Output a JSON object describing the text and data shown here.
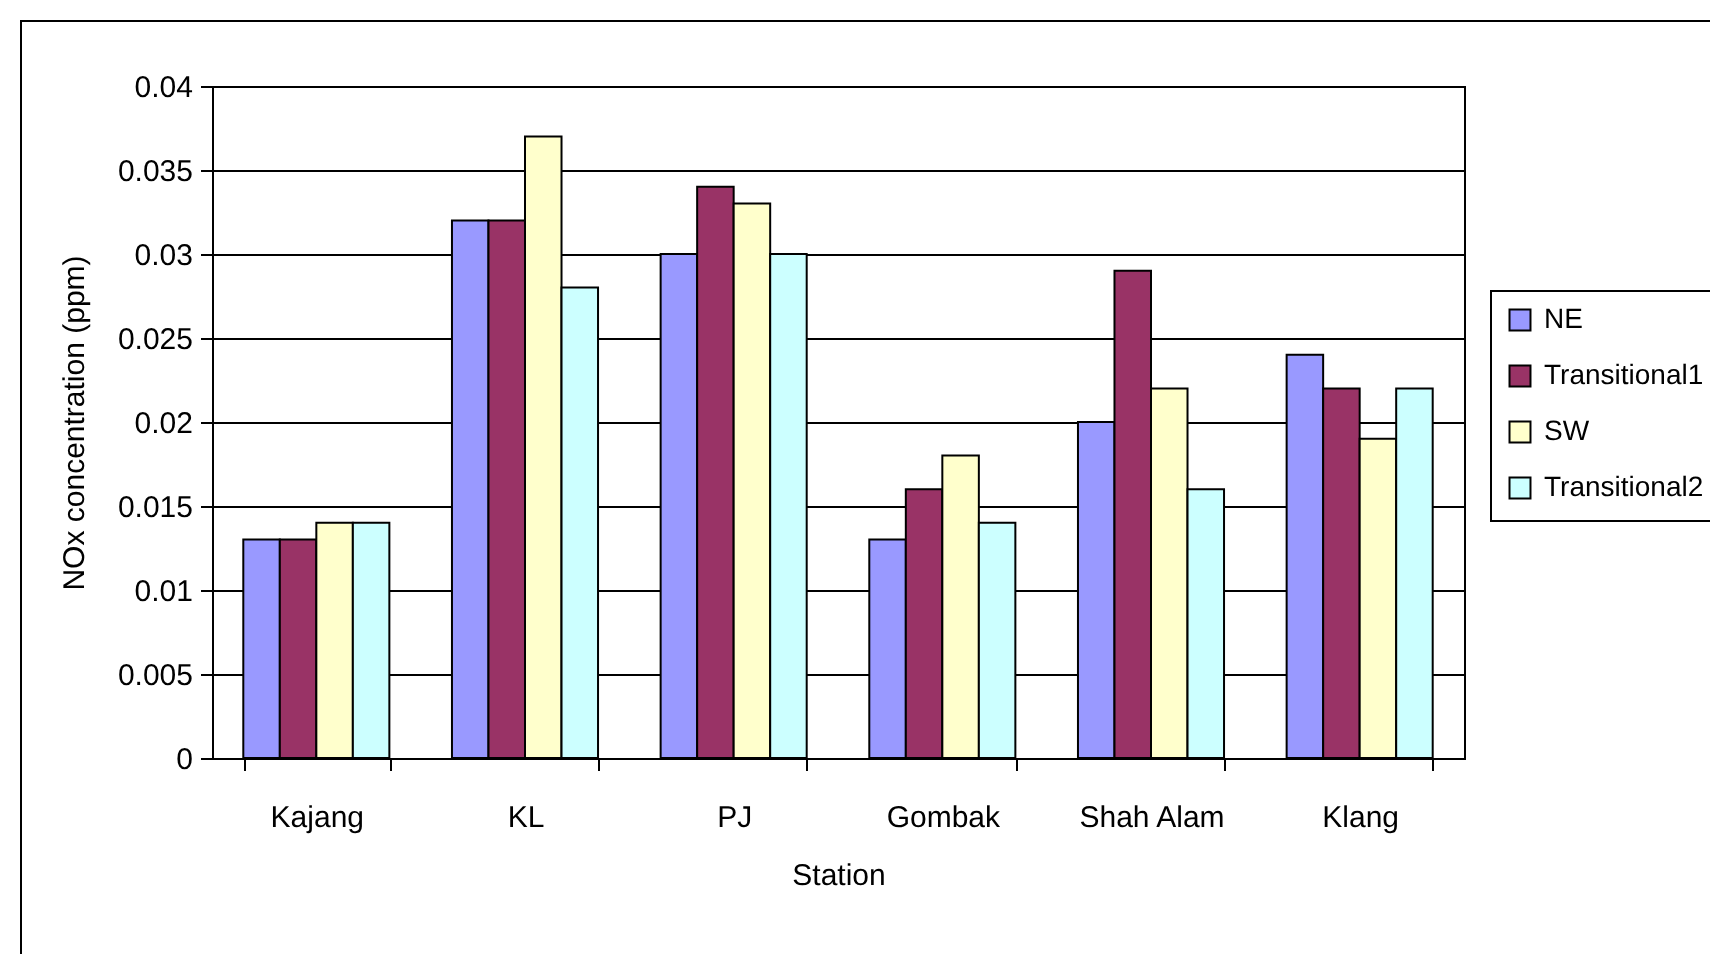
{
  "chart_data": {
    "type": "bar",
    "xlabel": "Station",
    "ylabel": "NOx concentration (ppm)",
    "categories": [
      "Kajang",
      "KL",
      "PJ",
      "Gombak",
      "Shah Alam",
      "Klang"
    ],
    "series": [
      {
        "name": "NE",
        "color": "#9999ff",
        "values": [
          0.013,
          0.032,
          0.03,
          0.013,
          0.02,
          0.024
        ]
      },
      {
        "name": "Transitional1",
        "color": "#993366",
        "values": [
          0.013,
          0.032,
          0.034,
          0.016,
          0.029,
          0.022
        ]
      },
      {
        "name": "SW",
        "color": "#ffffcc",
        "values": [
          0.014,
          0.037,
          0.033,
          0.018,
          0.022,
          0.019
        ]
      },
      {
        "name": "Transitional2",
        "color": "#ccffff",
        "values": [
          0.014,
          0.028,
          0.03,
          0.014,
          0.016,
          0.022
        ]
      }
    ],
    "ylim": [
      0,
      0.04
    ],
    "yticks": [
      0,
      0.005,
      0.01,
      0.015,
      0.02,
      0.025,
      0.03,
      0.035,
      0.04
    ],
    "grid": "y",
    "legend": "right"
  }
}
